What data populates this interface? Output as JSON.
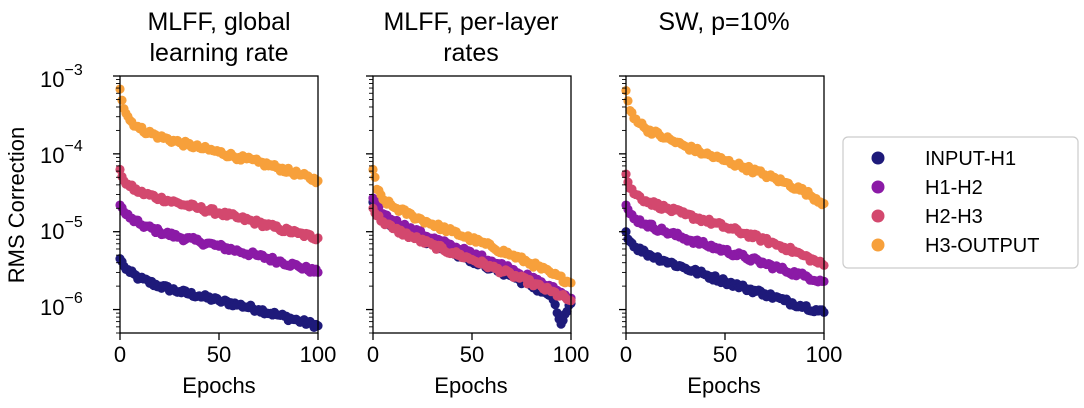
{
  "chart_data": {
    "type": "scatter",
    "ylabel": "RMS Correction",
    "yscale": "log",
    "ylim": [
      5e-07,
      0.001
    ],
    "yticks": [
      {
        "value": 1e-06,
        "base": "10",
        "exp": "−6"
      },
      {
        "value": 1e-05,
        "base": "10",
        "exp": "−5"
      },
      {
        "value": 0.0001,
        "base": "10",
        "exp": "−4"
      },
      {
        "value": 0.001,
        "base": "10",
        "exp": "−3"
      }
    ],
    "xlim": [
      0,
      100
    ],
    "xticks": [
      0,
      50,
      100
    ],
    "xtick_labels": [
      "0",
      "50",
      "100"
    ],
    "legend": [
      {
        "name": "INPUT-H1",
        "color": "#1e1a7a"
      },
      {
        "name": "H1-H2",
        "color": "#8b1aa6"
      },
      {
        "name": "H2-H3",
        "color": "#d3486e"
      },
      {
        "name": "H3-OUTPUT",
        "color": "#f7a03b"
      }
    ],
    "panels": [
      {
        "title_lines": [
          "MLFF, global",
          "learning rate"
        ],
        "xlabel": "Epochs",
        "series": [
          {
            "name": "INPUT-H1",
            "points": [
              [
                0,
                4.5e-06
              ],
              [
                2,
                3.6e-06
              ],
              [
                5,
                3e-06
              ],
              [
                10,
                2.5e-06
              ],
              [
                20,
                2e-06
              ],
              [
                30,
                1.7e-06
              ],
              [
                40,
                1.5e-06
              ],
              [
                50,
                1.3e-06
              ],
              [
                60,
                1.15e-06
              ],
              [
                70,
                1e-06
              ],
              [
                80,
                8.5e-07
              ],
              [
                90,
                7.2e-07
              ],
              [
                100,
                6.2e-07
              ]
            ]
          },
          {
            "name": "H1-H2",
            "points": [
              [
                0,
                2.2e-05
              ],
              [
                2,
                1.8e-05
              ],
              [
                5,
                1.5e-05
              ],
              [
                10,
                1.25e-05
              ],
              [
                20,
                1e-05
              ],
              [
                30,
                8.5e-06
              ],
              [
                40,
                7.5e-06
              ],
              [
                50,
                6.5e-06
              ],
              [
                60,
                5.6e-06
              ],
              [
                70,
                4.9e-06
              ],
              [
                80,
                4.2e-06
              ],
              [
                90,
                3.6e-06
              ],
              [
                100,
                3e-06
              ]
            ]
          },
          {
            "name": "H2-H3",
            "points": [
              [
                0,
                6.3e-05
              ],
              [
                2,
                4.5e-05
              ],
              [
                5,
                3.8e-05
              ],
              [
                10,
                3.2e-05
              ],
              [
                20,
                2.7e-05
              ],
              [
                30,
                2.3e-05
              ],
              [
                40,
                2e-05
              ],
              [
                50,
                1.75e-05
              ],
              [
                60,
                1.5e-05
              ],
              [
                70,
                1.3e-05
              ],
              [
                80,
                1.1e-05
              ],
              [
                90,
                9.5e-06
              ],
              [
                100,
                8.3e-06
              ]
            ]
          },
          {
            "name": "H3-OUTPUT",
            "points": [
              [
                0,
                0.00068
              ],
              [
                2,
                0.00038
              ],
              [
                5,
                0.00027
              ],
              [
                10,
                0.00021
              ],
              [
                20,
                0.000165
              ],
              [
                30,
                0.00014
              ],
              [
                40,
                0.00012
              ],
              [
                50,
                0.000105
              ],
              [
                60,
                9e-05
              ],
              [
                70,
                7.8e-05
              ],
              [
                80,
                6.6e-05
              ],
              [
                90,
                5.5e-05
              ],
              [
                100,
                4.5e-05
              ]
            ]
          }
        ]
      },
      {
        "title_lines": [
          "MLFF, per-layer",
          "rates"
        ],
        "xlabel": "Epochs",
        "series": [
          {
            "name": "INPUT-H1",
            "points": [
              [
                0,
                2.4e-05
              ],
              [
                2,
                1.8e-05
              ],
              [
                5,
                1.45e-05
              ],
              [
                10,
                1.2e-05
              ],
              [
                20,
                9e-06
              ],
              [
                30,
                7e-06
              ],
              [
                40,
                5.5e-06
              ],
              [
                50,
                4.3e-06
              ],
              [
                60,
                3.4e-06
              ],
              [
                70,
                2.7e-06
              ],
              [
                80,
                2e-06
              ],
              [
                90,
                1.5e-06
              ],
              [
                95,
                6.5e-07
              ],
              [
                100,
                1.2e-06
              ]
            ]
          },
          {
            "name": "H1-H2",
            "points": [
              [
                0,
                2.7e-05
              ],
              [
                2,
                2.1e-05
              ],
              [
                5,
                1.7e-05
              ],
              [
                10,
                1.4e-05
              ],
              [
                20,
                1.05e-05
              ],
              [
                30,
                8.2e-06
              ],
              [
                40,
                6.5e-06
              ],
              [
                50,
                5.2e-06
              ],
              [
                60,
                4.2e-06
              ],
              [
                70,
                3.3e-06
              ],
              [
                80,
                2.5e-06
              ],
              [
                90,
                1.9e-06
              ],
              [
                100,
                1.4e-06
              ]
            ]
          },
          {
            "name": "H2-H3",
            "points": [
              [
                0,
                2e-05
              ],
              [
                2,
                1.6e-05
              ],
              [
                5,
                1.35e-05
              ],
              [
                10,
                1.1e-05
              ],
              [
                20,
                8.5e-06
              ],
              [
                30,
                6.7e-06
              ],
              [
                40,
                5.4e-06
              ],
              [
                50,
                4.4e-06
              ],
              [
                60,
                3.5e-06
              ],
              [
                70,
                2.8e-06
              ],
              [
                80,
                2.2e-06
              ],
              [
                90,
                1.7e-06
              ],
              [
                100,
                1.3e-06
              ]
            ]
          },
          {
            "name": "H3-OUTPUT",
            "points": [
              [
                0,
                6.3e-05
              ],
              [
                2,
                3.5e-05
              ],
              [
                5,
                2.6e-05
              ],
              [
                10,
                2.1e-05
              ],
              [
                20,
                1.6e-05
              ],
              [
                30,
                1.25e-05
              ],
              [
                40,
                1e-05
              ],
              [
                50,
                8e-06
              ],
              [
                60,
                6.4e-06
              ],
              [
                70,
                5e-06
              ],
              [
                80,
                3.9e-06
              ],
              [
                90,
                2.9e-06
              ],
              [
                100,
                2.2e-06
              ]
            ]
          }
        ]
      },
      {
        "title_lines": [
          "SW, p=10%"
        ],
        "xlabel": "Epochs",
        "series": [
          {
            "name": "INPUT-H1",
            "points": [
              [
                0,
                1e-05
              ],
              [
                2,
                7.5e-06
              ],
              [
                5,
                6.3e-06
              ],
              [
                10,
                5.3e-06
              ],
              [
                20,
                4.2e-06
              ],
              [
                30,
                3.4e-06
              ],
              [
                40,
                2.8e-06
              ],
              [
                50,
                2.3e-06
              ],
              [
                60,
                1.9e-06
              ],
              [
                70,
                1.6e-06
              ],
              [
                80,
                1.3e-06
              ],
              [
                90,
                1.1e-06
              ],
              [
                100,
                9.2e-07
              ]
            ]
          },
          {
            "name": "H1-H2",
            "points": [
              [
                0,
                2.2e-05
              ],
              [
                2,
                1.7e-05
              ],
              [
                5,
                1.45e-05
              ],
              [
                10,
                1.25e-05
              ],
              [
                20,
                1e-05
              ],
              [
                30,
                8.2e-06
              ],
              [
                40,
                6.8e-06
              ],
              [
                50,
                5.7e-06
              ],
              [
                60,
                4.7e-06
              ],
              [
                70,
                3.9e-06
              ],
              [
                80,
                3.2e-06
              ],
              [
                90,
                2.7e-06
              ],
              [
                100,
                2.3e-06
              ]
            ]
          },
          {
            "name": "H2-H3",
            "points": [
              [
                0,
                5.5e-05
              ],
              [
                2,
                3.6e-05
              ],
              [
                5,
                3e-05
              ],
              [
                10,
                2.5e-05
              ],
              [
                20,
                2e-05
              ],
              [
                30,
                1.65e-05
              ],
              [
                40,
                1.4e-05
              ],
              [
                50,
                1.15e-05
              ],
              [
                60,
                9.5e-06
              ],
              [
                70,
                7.8e-06
              ],
              [
                80,
                6.3e-06
              ],
              [
                90,
                4.9e-06
              ],
              [
                100,
                3.7e-06
              ]
            ]
          },
          {
            "name": "H3-OUTPUT",
            "points": [
              [
                0,
                0.00065
              ],
              [
                2,
                0.00036
              ],
              [
                5,
                0.00028
              ],
              [
                10,
                0.00021
              ],
              [
                20,
                0.00016
              ],
              [
                30,
                0.000125
              ],
              [
                40,
                0.0001
              ],
              [
                50,
                8.2e-05
              ],
              [
                60,
                6.7e-05
              ],
              [
                70,
                5.4e-05
              ],
              [
                80,
                4.3e-05
              ],
              [
                90,
                3.3e-05
              ],
              [
                100,
                2.3e-05
              ]
            ]
          }
        ]
      }
    ]
  }
}
